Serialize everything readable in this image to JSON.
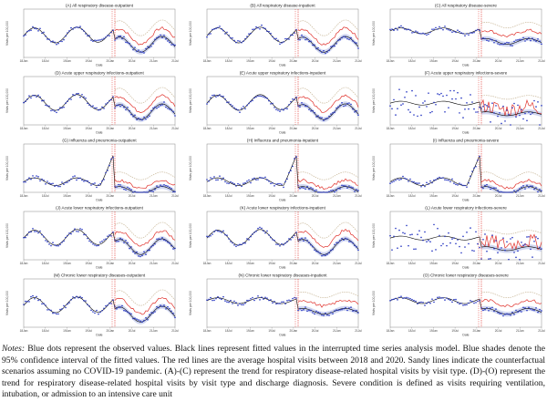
{
  "colors": {
    "observed": "#1f2fbf",
    "fitted": "#000000",
    "ci": "#9aa6e0",
    "average": "#e0302a",
    "counterfactual": "#c9b89a",
    "break": "#e0302a"
  },
  "shared": {
    "ylabel": "Visits per 100,000",
    "xlabel": "Date",
    "xticks": [
      "18Jan",
      "18Jul",
      "19Jan",
      "19Jul",
      "20Jan",
      "20Jul",
      "21Jan",
      "21Jul"
    ]
  },
  "chart_data": [
    {
      "id": "A",
      "type": "line",
      "title": "(A) All respiratory disease-outpatient",
      "shape": "season",
      "red": "post"
    },
    {
      "id": "B",
      "type": "line",
      "title": "(B) All respiratory disease-inpatient",
      "shape": "season",
      "red": "post"
    },
    {
      "id": "C",
      "type": "line",
      "title": "(C) All respiratory disease-severe",
      "shape": "flat",
      "red": "post"
    },
    {
      "id": "D",
      "type": "line",
      "title": "(D) Acute upper respiratory infections-outpatient",
      "shape": "season",
      "red": "post"
    },
    {
      "id": "E",
      "type": "line",
      "title": "(E) Acute upper respiratory infections-inpatient",
      "shape": "season",
      "red": "post"
    },
    {
      "id": "F",
      "type": "line",
      "title": "(F) Acute upper respiratory infections-severe",
      "shape": "noisy",
      "red": "noisy"
    },
    {
      "id": "G",
      "type": "line",
      "title": "(G) Influenza and pneumonia-outpatient",
      "shape": "spike",
      "red": "post"
    },
    {
      "id": "H",
      "type": "line",
      "title": "(H) Influenza and pneumonia-inpatient",
      "shape": "spike",
      "red": "post"
    },
    {
      "id": "I",
      "type": "line",
      "title": "(I) Influenza and pneumonia-severe",
      "shape": "spike",
      "red": "post"
    },
    {
      "id": "J",
      "type": "line",
      "title": "(J) Acute lower respiratory infections-outpatient",
      "shape": "season",
      "red": "post"
    },
    {
      "id": "K",
      "type": "line",
      "title": "(K) Acute lower respiratory infections-inpatient",
      "shape": "season",
      "red": "post"
    },
    {
      "id": "L",
      "type": "line",
      "title": "(L) Acute lower respiratory infections-severe",
      "shape": "noisy",
      "red": "noisy"
    },
    {
      "id": "M",
      "type": "line",
      "title": "(M) Chronic lower respiratory diseases-outpatient",
      "shape": "season",
      "red": "post"
    },
    {
      "id": "N",
      "type": "line",
      "title": "(N) Chronic lower respiratory diseases-inpatient",
      "shape": "flat",
      "red": "post"
    },
    {
      "id": "O",
      "type": "line",
      "title": "(O) Chronic lower respiratory diseases-severe",
      "shape": "flat",
      "red": "post"
    }
  ],
  "notes": {
    "lead": "Notes:",
    "text": " Blue dots represent the observed values. Black lines represent fitted values in the interrupted time series analysis model. Blue shades denote the 95% confidence interval of the fitted values. The red lines are the average hospital visits between 2018 and 2020. Sandy lines indicate the counterfactual scenarios assuming no COVID-19 pandemic. (A)-(C) represent the trend for respiratory disease-related hospital visits by visit type. (D)-(O) represent the trend for respiratory disease-related hospital visits by visit type and discharge diagnosis. Severe condition is defined as visits requiring ventilation, intubation, or admission to an intensive care unit"
  }
}
